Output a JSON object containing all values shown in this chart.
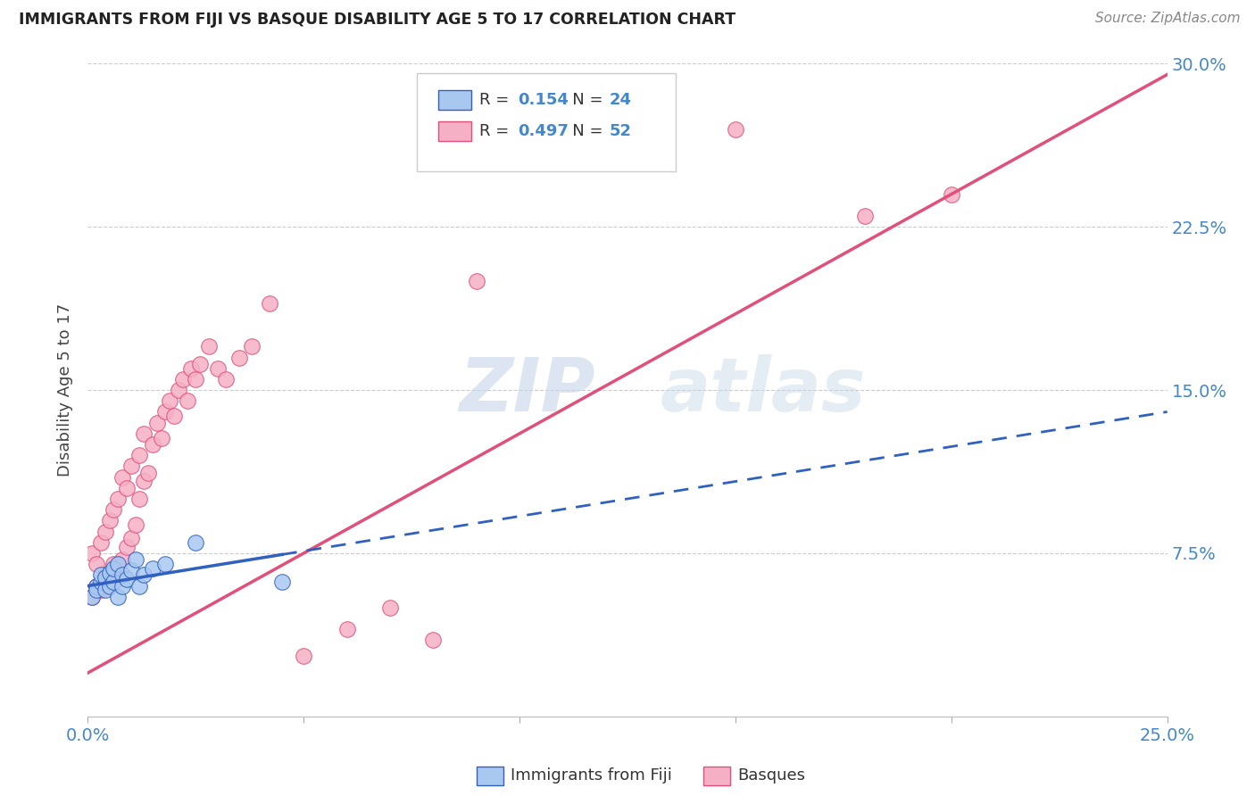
{
  "title": "IMMIGRANTS FROM FIJI VS BASQUE DISABILITY AGE 5 TO 17 CORRELATION CHART",
  "source": "Source: ZipAtlas.com",
  "ylabel": "Disability Age 5 to 17",
  "x_min": 0.0,
  "x_max": 0.25,
  "y_min": 0.0,
  "y_max": 0.3,
  "fiji_color": "#a8c8f0",
  "basque_color": "#f5b0c5",
  "fiji_line_color": "#3060c0",
  "basque_line_color": "#e0507a",
  "fiji_R": 0.154,
  "fiji_N": 24,
  "basque_R": 0.497,
  "basque_N": 52,
  "watermark_zip": "ZIP",
  "watermark_atlas": "atlas",
  "fiji_scatter_x": [
    0.001,
    0.002,
    0.002,
    0.003,
    0.003,
    0.004,
    0.004,
    0.005,
    0.005,
    0.006,
    0.006,
    0.007,
    0.007,
    0.008,
    0.008,
    0.009,
    0.01,
    0.011,
    0.012,
    0.013,
    0.015,
    0.018,
    0.025,
    0.045
  ],
  "fiji_scatter_y": [
    0.055,
    0.06,
    0.058,
    0.062,
    0.065,
    0.058,
    0.064,
    0.06,
    0.066,
    0.062,
    0.068,
    0.055,
    0.07,
    0.06,
    0.065,
    0.063,
    0.067,
    0.072,
    0.06,
    0.065,
    0.068,
    0.07,
    0.08,
    0.062
  ],
  "basque_scatter_x": [
    0.001,
    0.001,
    0.002,
    0.002,
    0.003,
    0.003,
    0.004,
    0.004,
    0.005,
    0.005,
    0.006,
    0.006,
    0.007,
    0.007,
    0.008,
    0.008,
    0.009,
    0.009,
    0.01,
    0.01,
    0.011,
    0.012,
    0.012,
    0.013,
    0.013,
    0.014,
    0.015,
    0.016,
    0.017,
    0.018,
    0.019,
    0.02,
    0.021,
    0.022,
    0.023,
    0.024,
    0.025,
    0.026,
    0.028,
    0.03,
    0.032,
    0.035,
    0.038,
    0.042,
    0.05,
    0.06,
    0.07,
    0.08,
    0.09,
    0.15,
    0.18,
    0.2
  ],
  "basque_scatter_y": [
    0.055,
    0.075,
    0.06,
    0.07,
    0.058,
    0.08,
    0.065,
    0.085,
    0.062,
    0.09,
    0.07,
    0.095,
    0.068,
    0.1,
    0.072,
    0.11,
    0.078,
    0.105,
    0.082,
    0.115,
    0.088,
    0.1,
    0.12,
    0.108,
    0.13,
    0.112,
    0.125,
    0.135,
    0.128,
    0.14,
    0.145,
    0.138,
    0.15,
    0.155,
    0.145,
    0.16,
    0.155,
    0.162,
    0.17,
    0.16,
    0.155,
    0.165,
    0.17,
    0.19,
    0.028,
    0.04,
    0.05,
    0.035,
    0.2,
    0.27,
    0.23,
    0.24
  ],
  "basque_line_intercept": 0.02,
  "basque_line_slope": 1.1,
  "fiji_line_intercept": 0.06,
  "fiji_line_slope": 0.32
}
